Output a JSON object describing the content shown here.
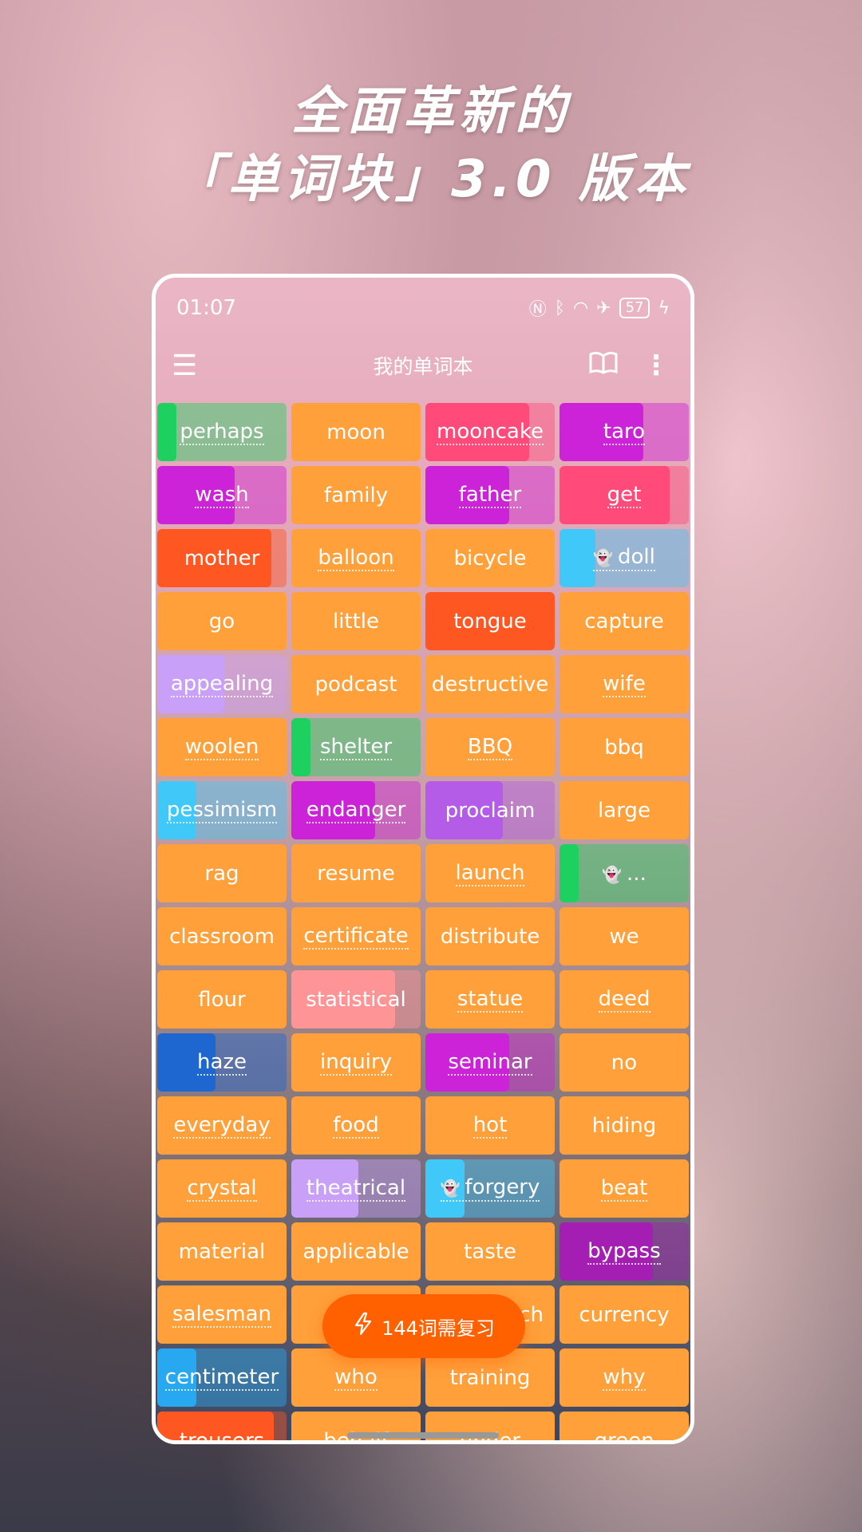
{
  "headline": {
    "line1": "全面革新的",
    "line2": "「单词块」3.0 版本"
  },
  "status_bar": {
    "time": "01:07",
    "battery": "57",
    "icons": [
      "nfc-icon",
      "bluetooth-icon",
      "wifi-icon",
      "airplane-icon",
      "battery-icon",
      "charging-icon"
    ]
  },
  "toolbar": {
    "title": "我的单词本",
    "menu_icon": "hamburger-icon",
    "book_icon": "book-icon",
    "more_icon": "more-vertical-icon"
  },
  "review_button": {
    "label": "144词需复习",
    "icon": "lightning-icon",
    "color": "#ff6000"
  },
  "colors": {
    "orange": "#ffa03a",
    "green": "#1ed060",
    "pink": "#ff4a7a",
    "magenta": "#cc22d8",
    "redorange": "#ff5722",
    "cyan": "#40c8f8",
    "lavender": "#c8a0f8",
    "purple": "#b45ce8",
    "salmon": "#ff9496",
    "blue": "#1e66d0",
    "violet": "#a41eb4",
    "skyblue": "#28a8f0"
  },
  "words": [
    {
      "text": "perhaps",
      "color": "green",
      "progress": 0.15,
      "underlined": true
    },
    {
      "text": "moon",
      "color": "orange",
      "progress": 1,
      "underlined": false
    },
    {
      "text": "mooncake",
      "color": "pink",
      "progress": 0.8,
      "underlined": true
    },
    {
      "text": "taro",
      "color": "magenta",
      "progress": 0.65,
      "underlined": true
    },
    {
      "text": "wash",
      "color": "magenta",
      "progress": 0.6,
      "underlined": true
    },
    {
      "text": "family",
      "color": "orange",
      "progress": 1,
      "underlined": false
    },
    {
      "text": "father",
      "color": "magenta",
      "progress": 0.65,
      "underlined": true
    },
    {
      "text": "get",
      "color": "pink",
      "progress": 0.85,
      "underlined": true
    },
    {
      "text": "mother",
      "color": "redorange",
      "progress": 0.88,
      "underlined": false
    },
    {
      "text": "balloon",
      "color": "orange",
      "progress": 1,
      "underlined": true
    },
    {
      "text": "bicycle",
      "color": "orange",
      "progress": 1,
      "underlined": false
    },
    {
      "text": "doll",
      "color": "cyan",
      "progress": 0.28,
      "underlined": true,
      "icon": "ghost-icon"
    },
    {
      "text": "go",
      "color": "orange",
      "progress": 1,
      "underlined": false
    },
    {
      "text": "little",
      "color": "orange",
      "progress": 1,
      "underlined": false
    },
    {
      "text": "tongue",
      "color": "redorange",
      "progress": 1,
      "underlined": false
    },
    {
      "text": "capture",
      "color": "orange",
      "progress": 1,
      "underlined": false
    },
    {
      "text": "appealing",
      "color": "lavender",
      "progress": 0.52,
      "underlined": true
    },
    {
      "text": "podcast",
      "color": "orange",
      "progress": 1,
      "underlined": false
    },
    {
      "text": "destructive",
      "color": "orange",
      "progress": 1,
      "underlined": false
    },
    {
      "text": "wife",
      "color": "orange",
      "progress": 1,
      "underlined": true
    },
    {
      "text": "woolen",
      "color": "orange",
      "progress": 1,
      "underlined": true
    },
    {
      "text": "shelter",
      "color": "green",
      "progress": 0.15,
      "underlined": true
    },
    {
      "text": "BBQ",
      "color": "orange",
      "progress": 1,
      "underlined": true
    },
    {
      "text": "bbq",
      "color": "orange",
      "progress": 1,
      "underlined": false
    },
    {
      "text": "pessimism",
      "color": "cyan",
      "progress": 0.3,
      "underlined": true
    },
    {
      "text": "endanger",
      "color": "magenta",
      "progress": 0.65,
      "underlined": true
    },
    {
      "text": "proclaim",
      "color": "purple",
      "progress": 0.6,
      "underlined": false
    },
    {
      "text": "large",
      "color": "orange",
      "progress": 1,
      "underlined": false
    },
    {
      "text": "rag",
      "color": "orange",
      "progress": 1,
      "underlined": false
    },
    {
      "text": "resume",
      "color": "orange",
      "progress": 1,
      "underlined": false
    },
    {
      "text": "launch",
      "color": "orange",
      "progress": 1,
      "underlined": true
    },
    {
      "text": "...",
      "color": "green",
      "progress": 0.15,
      "underlined": false,
      "icon": "ghost-icon"
    },
    {
      "text": "classroom",
      "color": "orange",
      "progress": 1,
      "underlined": false
    },
    {
      "text": "certificate",
      "color": "orange",
      "progress": 1,
      "underlined": true
    },
    {
      "text": "distribute",
      "color": "orange",
      "progress": 1,
      "underlined": false
    },
    {
      "text": "we",
      "color": "orange",
      "progress": 1,
      "underlined": false
    },
    {
      "text": "flour",
      "color": "orange",
      "progress": 1,
      "underlined": false
    },
    {
      "text": "statistical",
      "color": "salmon",
      "progress": 0.8,
      "underlined": false
    },
    {
      "text": "statue",
      "color": "orange",
      "progress": 1,
      "underlined": true
    },
    {
      "text": "deed",
      "color": "orange",
      "progress": 1,
      "underlined": true
    },
    {
      "text": "haze",
      "color": "blue",
      "progress": 0.45,
      "underlined": true
    },
    {
      "text": "inquiry",
      "color": "orange",
      "progress": 1,
      "underlined": true
    },
    {
      "text": "seminar",
      "color": "magenta",
      "progress": 0.65,
      "underlined": true
    },
    {
      "text": "no",
      "color": "orange",
      "progress": 1,
      "underlined": false
    },
    {
      "text": "everyday",
      "color": "orange",
      "progress": 1,
      "underlined": true
    },
    {
      "text": "food",
      "color": "orange",
      "progress": 1,
      "underlined": true
    },
    {
      "text": "hot",
      "color": "orange",
      "progress": 1,
      "underlined": true
    },
    {
      "text": "hiding",
      "color": "orange",
      "progress": 1,
      "underlined": false
    },
    {
      "text": "crystal",
      "color": "orange",
      "progress": 1,
      "underlined": true
    },
    {
      "text": "theatrical",
      "color": "lavender",
      "progress": 0.52,
      "underlined": true
    },
    {
      "text": "forgery",
      "color": "cyan",
      "progress": 0.3,
      "underlined": true,
      "icon": "ghost-icon"
    },
    {
      "text": "beat",
      "color": "orange",
      "progress": 1,
      "underlined": true
    },
    {
      "text": "material",
      "color": "orange",
      "progress": 1,
      "underlined": false
    },
    {
      "text": "applicable",
      "color": "orange",
      "progress": 1,
      "underlined": false
    },
    {
      "text": "taste",
      "color": "orange",
      "progress": 1,
      "underlined": false
    },
    {
      "text": "bypass",
      "color": "violet",
      "progress": 0.72,
      "underlined": true
    },
    {
      "text": "salesman",
      "color": "orange",
      "progress": 1,
      "underlined": true
    },
    {
      "text": "",
      "color": "orange",
      "progress": 1,
      "underlined": false
    },
    {
      "text": "ch",
      "color": "orange",
      "progress": 1,
      "underlined": false
    },
    {
      "text": "currency",
      "color": "orange",
      "progress": 1,
      "underlined": false
    },
    {
      "text": "centimeter",
      "color": "skyblue",
      "progress": 0.3,
      "underlined": true
    },
    {
      "text": "who",
      "color": "orange",
      "progress": 1,
      "underlined": true
    },
    {
      "text": "training",
      "color": "orange",
      "progress": 1,
      "underlined": false
    },
    {
      "text": "why",
      "color": "orange",
      "progress": 1,
      "underlined": true
    },
    {
      "text": "trousers",
      "color": "redorange",
      "progress": 0.9,
      "underlined": false
    },
    {
      "text": "behalf",
      "color": "orange",
      "progress": 1,
      "underlined": false
    },
    {
      "text": "under",
      "color": "orange",
      "progress": 1,
      "underlined": false
    },
    {
      "text": "green",
      "color": "orange",
      "progress": 1,
      "underlined": false
    }
  ]
}
